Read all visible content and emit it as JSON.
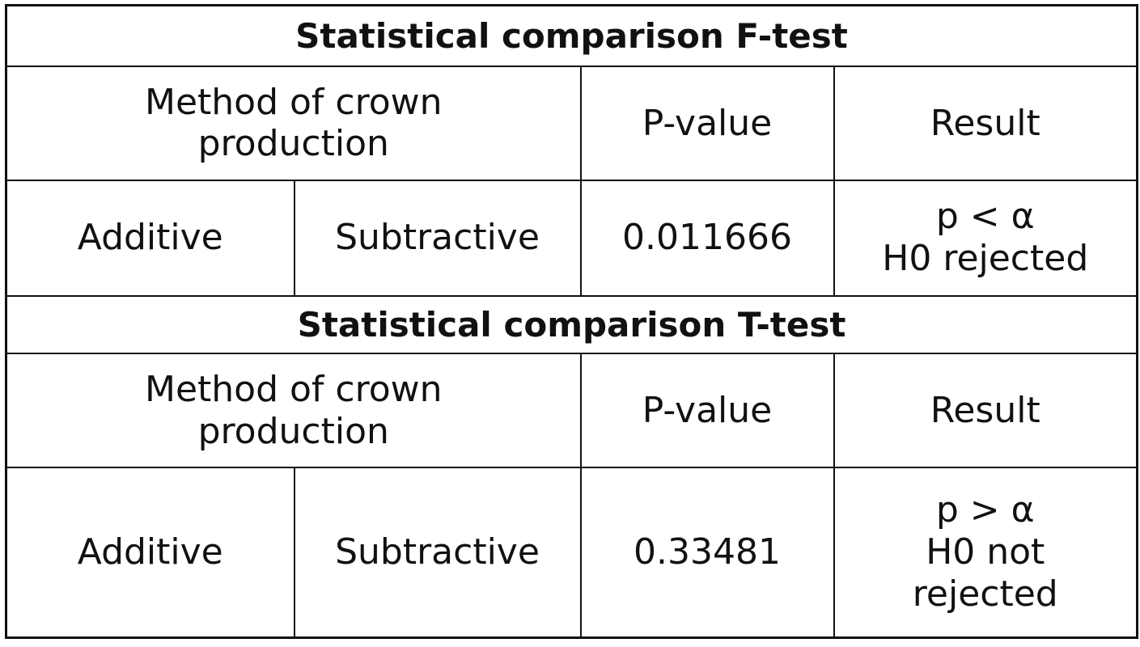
{
  "f_test": {
    "title": "Statistical comparison F-test",
    "header": {
      "method_line1": "Method of crown",
      "method_line2": "production",
      "pvalue": "P-value",
      "result": "Result"
    },
    "row": {
      "method_a": "Additive",
      "method_b": "Subtractive",
      "pvalue": "0.011666",
      "result_line1": "p < α",
      "result_line2": "H0 rejected"
    }
  },
  "t_test": {
    "title": "Statistical comparison T-test",
    "header": {
      "method_line1": "Method of crown",
      "method_line2": "production",
      "pvalue": "P-value",
      "result": "Result"
    },
    "row": {
      "method_a": "Additive",
      "method_b": "Subtractive",
      "pvalue": "0.33481",
      "result_line1": "p > α",
      "result_line2": "H0 not",
      "result_line3": "rejected"
    }
  }
}
